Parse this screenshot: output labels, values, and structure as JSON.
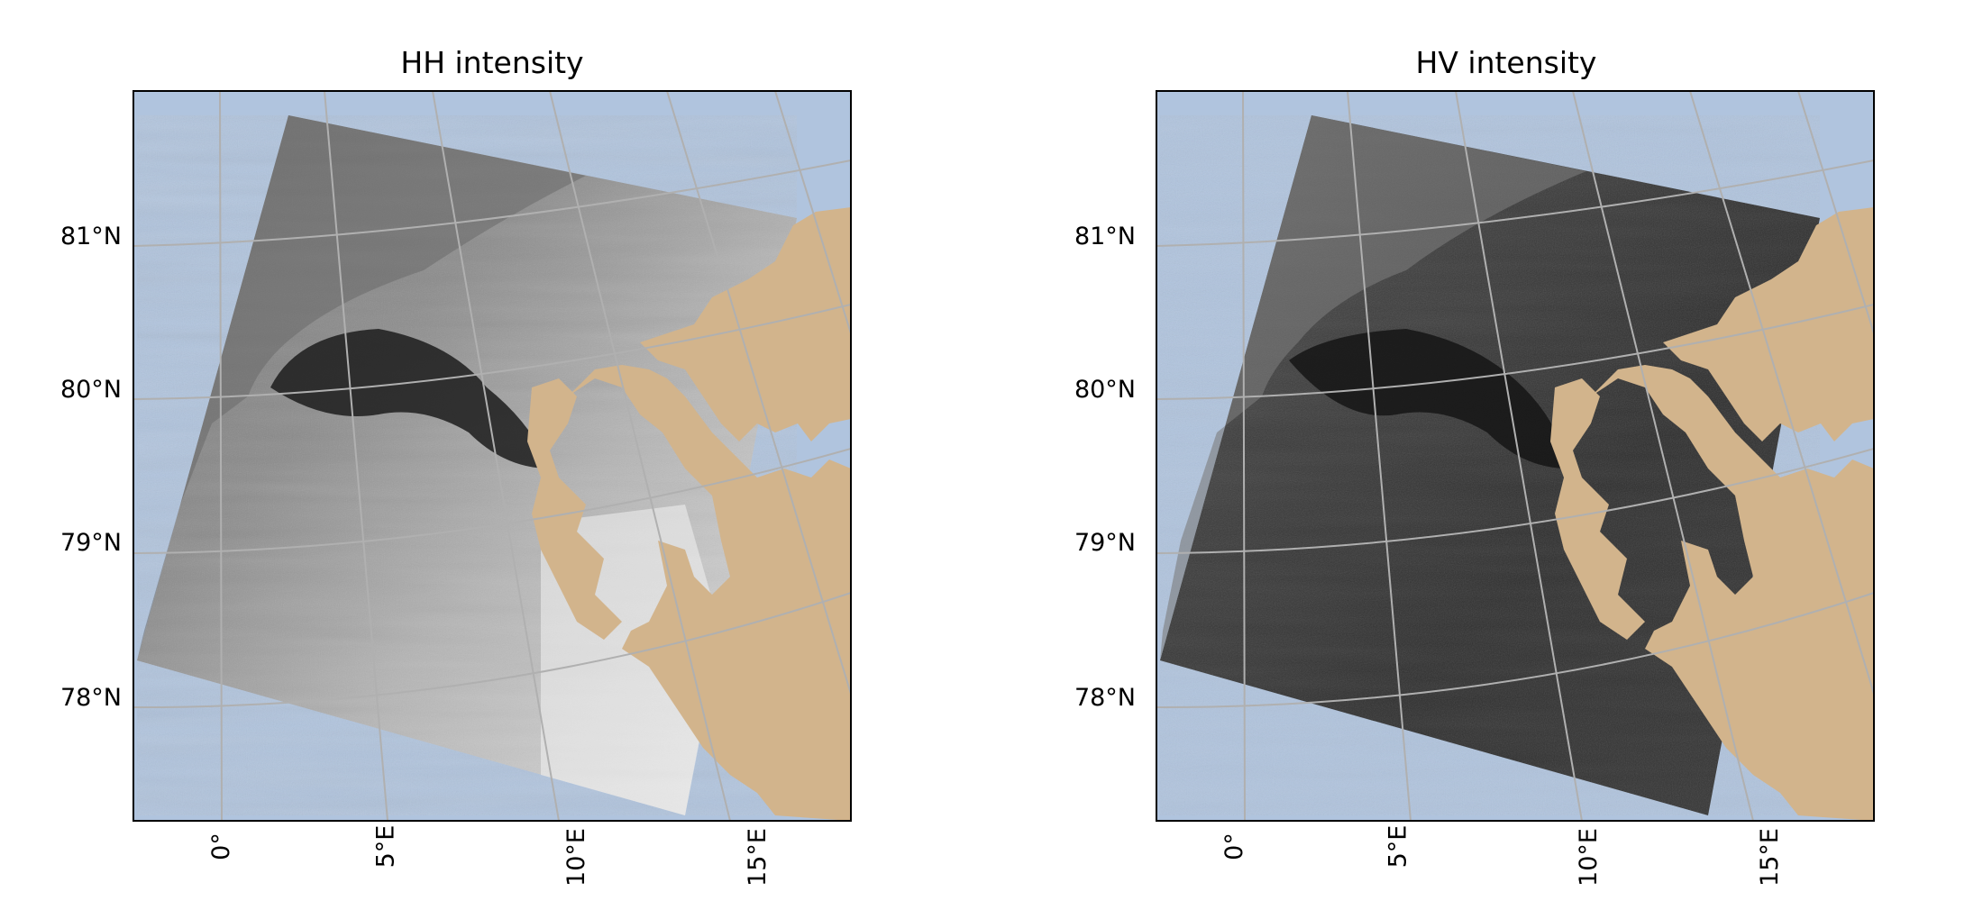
{
  "figure": {
    "panels": [
      {
        "title": "HH intensity",
        "tone": "bright",
        "lat_labels": [
          "81°N",
          "80°N",
          "79°N",
          "78°N"
        ],
        "lon_labels": [
          "0°",
          "5°E",
          "10°E",
          "15°E"
        ]
      },
      {
        "title": "HV intensity",
        "tone": "dark",
        "lat_labels": [
          "81°N",
          "80°N",
          "79°N",
          "78°N"
        ],
        "lon_labels": [
          "0°",
          "5°E",
          "10°E",
          "15°E"
        ]
      }
    ]
  },
  "colors": {
    "ocean": "#b0c4de",
    "land": "#d2b48c",
    "graticule": "#b0b0b0",
    "frame": "#000000"
  }
}
